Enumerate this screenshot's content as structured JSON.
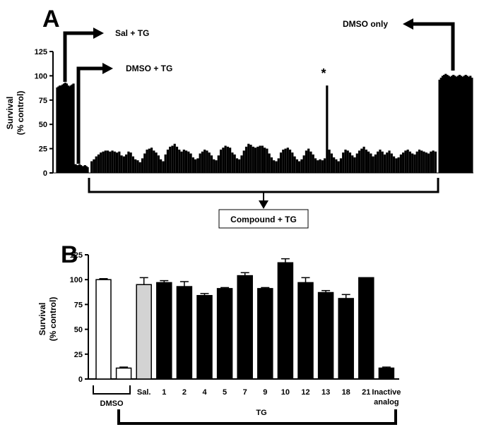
{
  "chart_data": [
    {
      "panel": "A",
      "type": "bar",
      "ylabel_lines": [
        "Survival",
        "(% control)"
      ],
      "ylim": [
        0,
        125
      ],
      "yticks": [
        0,
        25,
        50,
        75,
        100,
        125
      ],
      "annotations": {
        "sal_tg": "Sal + TG",
        "dmso_tg": "DMSO + TG",
        "dmso_only": "DMSO  only",
        "compound_tg": "Compound + TG",
        "star": "*"
      },
      "groups": [
        {
          "role": "sal_tg",
          "values": [
            88,
            89,
            90,
            90,
            91,
            92,
            93,
            92,
            90,
            89,
            90,
            91,
            92
          ]
        },
        {
          "role": "dmso_tg",
          "values": [
            9,
            8,
            8,
            9,
            8,
            7,
            7,
            8,
            7,
            6
          ]
        },
        {
          "role": "compound_tg",
          "values": [
            12,
            14,
            17,
            19,
            21,
            22,
            23,
            23,
            22,
            23,
            22,
            21,
            22,
            18,
            17,
            19,
            22,
            21,
            17,
            14,
            13,
            11,
            15,
            20,
            24,
            25,
            26,
            23,
            21,
            18,
            14,
            12,
            19,
            24,
            27,
            28,
            30,
            27,
            24,
            22,
            24,
            23,
            22,
            20,
            16,
            14,
            15,
            20,
            22,
            24,
            23,
            21,
            18,
            14,
            13,
            18,
            24,
            26,
            28,
            27,
            26,
            21,
            19,
            15,
            14,
            18,
            23,
            27,
            30,
            29,
            27,
            26,
            27,
            28,
            28,
            26,
            25,
            20,
            16,
            13,
            12,
            15,
            21,
            24,
            25,
            26,
            24,
            21,
            17,
            14,
            12,
            14,
            18,
            23,
            25,
            22,
            19,
            15,
            13,
            14,
            13,
            15,
            90,
            24,
            20,
            16,
            14,
            12,
            15,
            21,
            24,
            23,
            21,
            18,
            16,
            20,
            23,
            25,
            27,
            24,
            22,
            20,
            17,
            19,
            22,
            24,
            22,
            19,
            21,
            23,
            20,
            17,
            15,
            16,
            19,
            21,
            23,
            24,
            22,
            20,
            19,
            22,
            24,
            23,
            22,
            21,
            20,
            22,
            23,
            22
          ]
        },
        {
          "role": "dmso_only",
          "values": [
            96,
            98,
            100,
            101,
            102,
            101,
            100,
            99,
            100,
            101,
            100,
            99,
            100,
            101,
            100,
            99,
            100,
            101,
            100,
            99,
            100,
            98
          ]
        }
      ]
    },
    {
      "panel": "B",
      "type": "bar",
      "ylabel_lines": [
        "Survival",
        "(% control)"
      ],
      "ylim": [
        0,
        125
      ],
      "yticks": [
        0,
        25,
        50,
        75,
        100,
        125
      ],
      "categories": [
        "",
        "",
        "Sal.",
        "1",
        "2",
        "4",
        "5",
        "7",
        "9",
        "10",
        "12",
        "13",
        "18",
        "21",
        "Inactive\nanalog"
      ],
      "values": [
        100,
        11,
        95,
        97,
        93,
        84,
        91,
        104,
        91,
        117,
        97,
        87,
        81,
        102,
        11
      ],
      "errors": [
        1,
        1,
        7,
        2,
        5,
        2,
        1,
        3,
        1,
        4,
        5,
        2,
        4,
        0,
        1
      ],
      "fills": [
        "#ffffff",
        "#ffffff",
        "#d3d3d3",
        "#000000",
        "#000000",
        "#000000",
        "#000000",
        "#000000",
        "#000000",
        "#000000",
        "#000000",
        "#000000",
        "#000000",
        "#000000",
        "#000000"
      ],
      "group_labels": {
        "dmso": "DMSO",
        "tg": "TG"
      }
    }
  ]
}
